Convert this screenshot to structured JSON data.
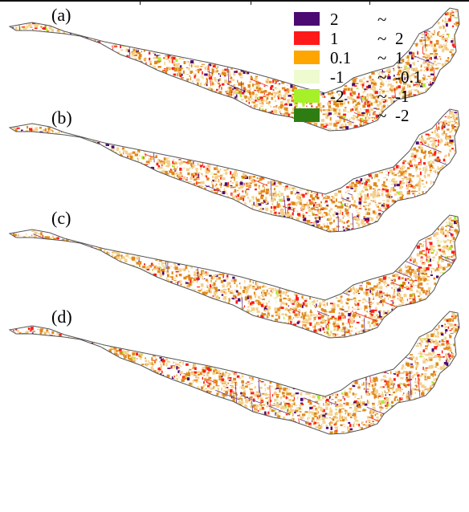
{
  "panels": [
    {
      "label": "(a)",
      "seed": 11
    },
    {
      "label": "(b)",
      "seed": 23
    },
    {
      "label": "(c)",
      "seed": 37
    },
    {
      "label": "(d)",
      "seed": 59
    }
  ],
  "legend": {
    "items": [
      {
        "from": "2",
        "to": "",
        "color": "#4b0a72"
      },
      {
        "from": "1",
        "to": "2",
        "color": "#ff1a1a"
      },
      {
        "from": "0.1",
        "to": "1",
        "color": "#ffa500"
      },
      {
        "from": "-1",
        "to": "-0.1",
        "color": "#eefad0"
      },
      {
        "from": "-2",
        "to": "-1",
        "color": "#a6f02a"
      },
      {
        "from": "",
        "to": "-2",
        "color": "#2e7d13"
      }
    ],
    "tilde": "~"
  },
  "colors": {
    "outline": "#555555",
    "roads": "#6a3a8a",
    "dense": "#e0881a",
    "light": "#f5cf8a"
  }
}
